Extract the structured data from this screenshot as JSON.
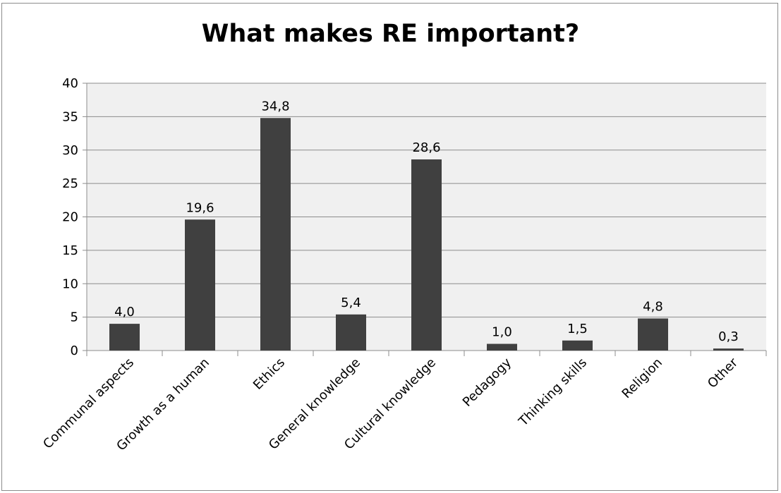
{
  "chart_data": {
    "type": "bar",
    "title": "What makes RE important?",
    "categories": [
      "Communal aspects",
      "Growth as a human",
      "Ethics",
      "General knowledge",
      "Cultural knowledge",
      "Pedagogy",
      "Thinking skills",
      "Religion",
      "Other"
    ],
    "values": [
      4.0,
      19.6,
      34.8,
      5.4,
      28.6,
      1.0,
      1.5,
      4.8,
      0.3
    ],
    "data_labels": [
      "4,0",
      "19,6",
      "34,8",
      "5,4",
      "28,6",
      "1,0",
      "1,5",
      "4,8",
      "0,3"
    ],
    "ylim": [
      0,
      40
    ],
    "yticks": [
      0,
      5,
      10,
      15,
      20,
      25,
      30,
      35,
      40
    ],
    "xlabel": "",
    "ylabel": "",
    "grid": true,
    "legend": "none",
    "colors": {
      "bar": "#404040",
      "plot_background": "#f0f0f0",
      "gridline": "#8c8c8c",
      "axis": "#8c8c8c",
      "frame": "#8c8c8c"
    }
  }
}
